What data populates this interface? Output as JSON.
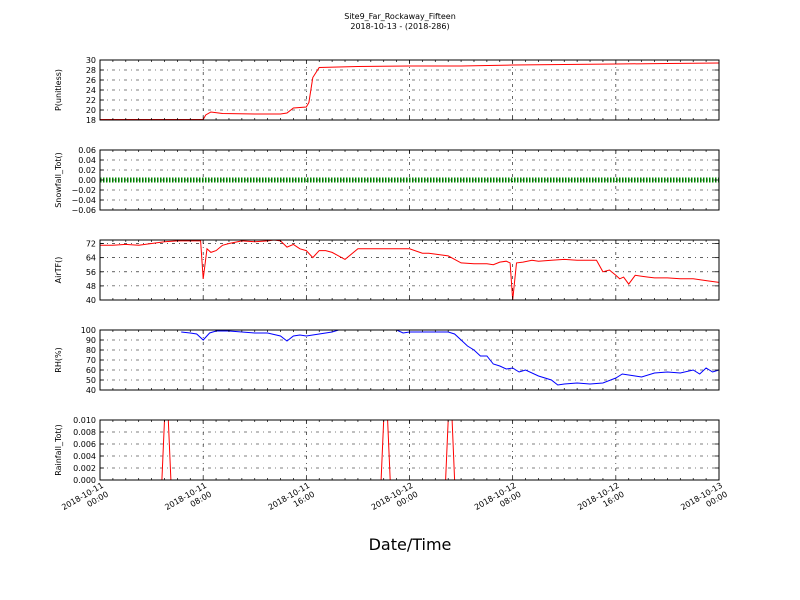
{
  "title": "Site9_Far_Rockaway_Fifteen",
  "subtitle": "2018-10-13 - (2018-286)",
  "xlabel": "Date/Time",
  "x_ticks": [
    {
      "t": 0,
      "l1": "2018-10-11",
      "l2": "00:00"
    },
    {
      "t": 8,
      "l1": "2018-10-11",
      "l2": "08:00"
    },
    {
      "t": 16,
      "l1": "2018-10-11",
      "l2": "16:00"
    },
    {
      "t": 24,
      "l1": "2018-10-12",
      "l2": "00:00"
    },
    {
      "t": 32,
      "l1": "2018-10-12",
      "l2": "08:00"
    },
    {
      "t": 40,
      "l1": "2018-10-12",
      "l2": "16:00"
    },
    {
      "t": 48,
      "l1": "2018-10-13",
      "l2": "00:00"
    }
  ],
  "colors": {
    "red": "#ff0000",
    "blue": "#0000ff",
    "green": "#008000"
  },
  "chart_data": [
    {
      "type": "line",
      "ylabel": "P(unitless)",
      "ylim": [
        18,
        30
      ],
      "yticks": [
        18,
        20,
        22,
        24,
        26,
        28,
        30
      ],
      "grid": true,
      "series": [
        {
          "color": "#ff0000",
          "x": [
            0,
            8,
            8.2,
            8.6,
            9.5,
            12,
            14,
            14.5,
            15,
            16,
            16.2,
            16.5,
            17,
            20,
            24,
            28,
            32,
            36,
            40,
            44,
            48
          ],
          "y": [
            18.1,
            18.1,
            19.0,
            19.6,
            19.3,
            19.2,
            19.2,
            19.4,
            20.4,
            20.6,
            21.5,
            26.5,
            28.5,
            28.7,
            28.8,
            28.8,
            29.0,
            29.1,
            29.2,
            29.3,
            29.4
          ]
        }
      ]
    },
    {
      "type": "line",
      "ylabel": "Snowfall_Tot()",
      "ylim": [
        -0.06,
        0.06
      ],
      "yticks": [
        -0.06,
        -0.04,
        -0.02,
        0.0,
        0.02,
        0.04,
        0.06
      ],
      "grid": true,
      "series": [
        {
          "color": "#008000",
          "marker": "dot",
          "x": [
            0,
            48
          ],
          "y": [
            0,
            0
          ]
        }
      ]
    },
    {
      "type": "line",
      "ylabel": "AirTF()",
      "ylim": [
        40,
        74
      ],
      "yticks": [
        40,
        48,
        56,
        64,
        72
      ],
      "grid": true,
      "series": [
        {
          "color": "#ff0000",
          "x": [
            0,
            1,
            2,
            3,
            4,
            5,
            6,
            7,
            7.8,
            8.0,
            8.3,
            8.6,
            9,
            9.5,
            10,
            11,
            12,
            13,
            13.5,
            14,
            14.5,
            15,
            15.5,
            16,
            16.5,
            17,
            17.5,
            18,
            19,
            20,
            21,
            22,
            22.5,
            23,
            24,
            25,
            25.5,
            26,
            27,
            28,
            29,
            30,
            30.5,
            31,
            31.5,
            31.8,
            32,
            32.3,
            32.8,
            33.5,
            34,
            35,
            36,
            37,
            38,
            38.5,
            39,
            39.5,
            40,
            40.3,
            40.6,
            41,
            41.5,
            42,
            42.5,
            43,
            44,
            45,
            46,
            47,
            48
          ],
          "y": [
            71,
            71,
            71.5,
            71,
            72,
            73,
            73.5,
            73.5,
            73.5,
            52,
            69,
            67,
            68,
            71,
            72,
            73.5,
            73,
            73.5,
            74,
            73.5,
            70,
            71.5,
            69,
            68,
            64,
            68,
            68,
            67,
            63,
            69,
            69,
            69,
            69,
            69,
            69,
            66.5,
            66.5,
            66,
            65,
            61,
            60.5,
            60.5,
            60,
            61.5,
            62,
            61,
            40,
            61,
            61.5,
            62.5,
            62,
            62.5,
            63,
            62.5,
            62.5,
            62.5,
            56,
            57,
            54,
            52,
            53,
            49,
            54,
            53.5,
            53,
            52.5,
            52.5,
            52,
            52,
            51,
            50
          ]
        }
      ]
    },
    {
      "type": "line",
      "ylabel": "RH(%)",
      "ylim": [
        40,
        100
      ],
      "yticks": [
        40,
        50,
        60,
        70,
        80,
        90,
        100
      ],
      "grid": true,
      "series": [
        {
          "color": "#0000ff",
          "x": [
            6.3,
            7,
            7.5,
            8,
            8.5,
            9,
            10,
            11,
            12,
            13,
            14,
            14.5,
            15,
            15.5,
            16,
            17,
            18,
            18.5,
            19,
            20,
            21,
            22,
            23,
            23.5,
            24,
            25,
            26,
            27,
            27.5,
            28,
            28.5,
            29,
            29.5,
            30,
            30.5,
            31,
            31.5,
            32,
            32.5,
            33,
            34,
            35,
            35.5,
            36,
            37,
            38,
            39,
            40,
            40.5,
            41,
            41.5,
            42,
            43,
            44,
            45,
            46,
            46.5,
            47,
            47.5,
            48
          ],
          "y": [
            98,
            97,
            96,
            90,
            97,
            99,
            99,
            98,
            97,
            97,
            94,
            89,
            94,
            95,
            94,
            96,
            98,
            100,
            100,
            100,
            100,
            100,
            100,
            97,
            98,
            98,
            98,
            98,
            96,
            90,
            84,
            80,
            74,
            74,
            66,
            64,
            61,
            62,
            58,
            60,
            54,
            50,
            45,
            46,
            47,
            46,
            47,
            52,
            56,
            55,
            54,
            53,
            57,
            58,
            57,
            60,
            56,
            62,
            58,
            60
          ]
        }
      ]
    },
    {
      "type": "line",
      "ylabel": "Rainfall_Tot()",
      "ylim": [
        0.0,
        0.01
      ],
      "yticks": [
        0.0,
        0.002,
        0.004,
        0.006,
        0.008,
        0.01
      ],
      "grid": true,
      "series": [
        {
          "color": "#ff0000",
          "x": [
            0,
            4.8,
            5.0,
            5.3,
            5.5,
            21.8,
            22.0,
            22.3,
            22.5,
            26.8,
            27.0,
            27.3,
            27.5,
            48
          ],
          "y": [
            0,
            0,
            0.01,
            0.01,
            0,
            0,
            0.01,
            0.01,
            0,
            0,
            0.01,
            0.01,
            0,
            0
          ]
        }
      ]
    }
  ]
}
